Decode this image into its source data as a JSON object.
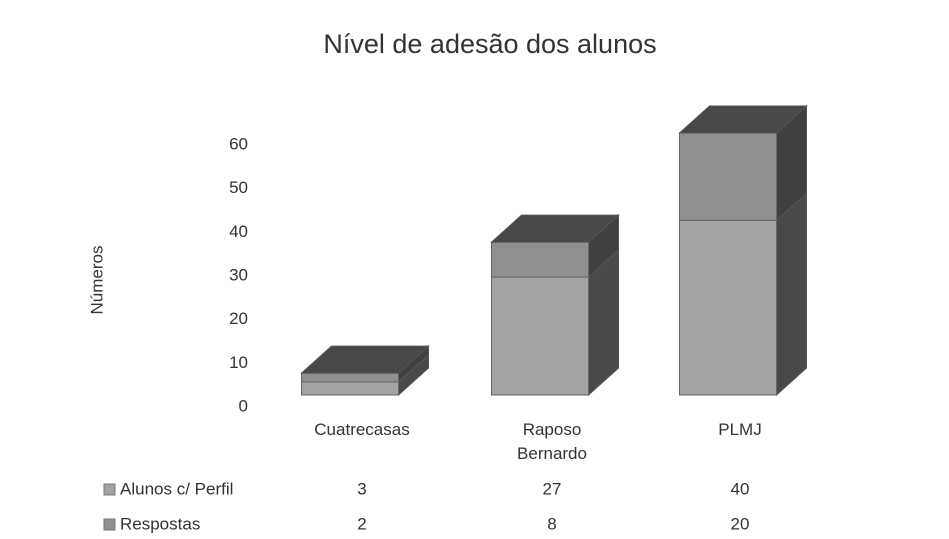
{
  "chart_data": {
    "type": "bar3d_stacked",
    "title": "Nível de adesão dos alunos",
    "y_label": "Números",
    "categories": [
      "Cuatrecasas",
      "Raposo Bernardo",
      "PLMJ"
    ],
    "series": [
      {
        "name": "Alunos c/ Perfil",
        "color": "#a3a3a3",
        "values": [
          3,
          27,
          40
        ]
      },
      {
        "name": "Respostas",
        "color": "#8f8f8f",
        "values": [
          2,
          8,
          20
        ]
      }
    ],
    "ylim": [
      0,
      60
    ],
    "yticks": [
      0,
      10,
      20,
      30,
      40,
      50,
      60
    ]
  }
}
